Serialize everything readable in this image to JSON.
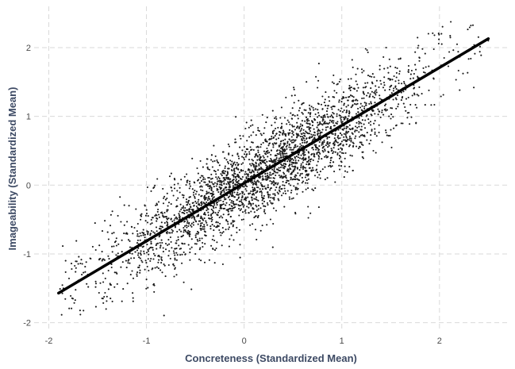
{
  "chart_data": {
    "type": "scatter",
    "xlabel": "Concreteness (Standardized Mean)",
    "ylabel": "Imageability (Standardized Mean)",
    "xlim": [
      -2.15,
      2.7
    ],
    "ylim": [
      -2.12,
      2.6
    ],
    "x_ticks": [
      -2,
      -1,
      0,
      1,
      2
    ],
    "y_ticks": [
      -2,
      -1,
      0,
      1,
      2
    ],
    "x_tick_labels": [
      "-2",
      "-1",
      "0",
      "1",
      "2"
    ],
    "y_tick_labels": [
      "-2",
      "-1",
      "0",
      "1",
      "2"
    ],
    "grid": true,
    "legend": "none",
    "point_color": "#1a1a1a",
    "fit_color": "#000000",
    "fit_line": {
      "x": [
        -1.9,
        2.5
      ],
      "y": [
        -1.57,
        2.13
      ]
    },
    "point_cloud": {
      "count": 3000,
      "x_range": [
        -1.9,
        2.5
      ],
      "y_range": [
        -2.0,
        2.5
      ],
      "slope": 0.84,
      "intercept": 0.03,
      "residual_sd": 0.33
    },
    "series": [
      {
        "x": [
          -1.85,
          -1.6,
          -1.3,
          -1.0,
          -0.7,
          -0.4,
          -0.1,
          0.2,
          0.5,
          0.8,
          1.1,
          1.4,
          1.7,
          2.0,
          2.3,
          2.5
        ],
        "y": [
          -1.5,
          -1.3,
          -1.05,
          -0.8,
          -0.55,
          -0.3,
          -0.05,
          0.2,
          0.45,
          0.7,
          0.95,
          1.2,
          1.45,
          1.7,
          1.95,
          2.1
        ]
      }
    ]
  }
}
